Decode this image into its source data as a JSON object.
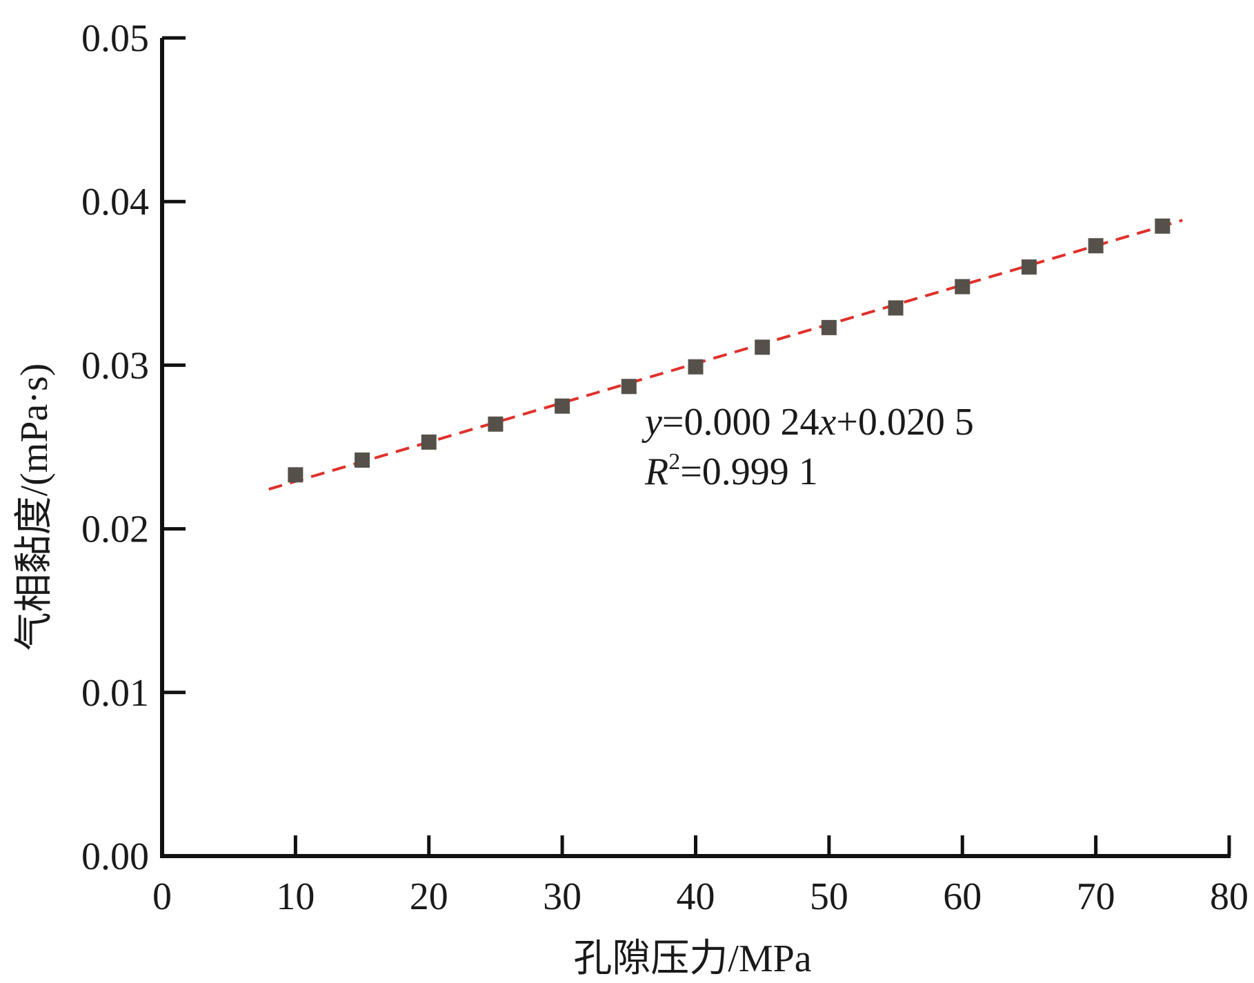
{
  "chart_data": {
    "type": "scatter",
    "title": "",
    "xlabel": "孔隙压力/MPa",
    "ylabel": "气相黏度/(mPa·s)",
    "xlim": [
      0,
      80
    ],
    "ylim": [
      0.0,
      0.05
    ],
    "x_ticks": [
      "0",
      "10",
      "20",
      "30",
      "40",
      "50",
      "60",
      "70",
      "80"
    ],
    "y_ticks": [
      "0.00",
      "0.01",
      "0.02",
      "0.03",
      "0.04",
      "0.05"
    ],
    "grid": false,
    "series": [
      {
        "type": "scatter",
        "marker": "square",
        "color": "#555049",
        "x": [
          10,
          15,
          20,
          25,
          30,
          35,
          40,
          45,
          50,
          55,
          60,
          65,
          70,
          75
        ],
        "y": [
          0.0233,
          0.0242,
          0.0253,
          0.0264,
          0.0275,
          0.0287,
          0.0299,
          0.0311,
          0.0323,
          0.0335,
          0.0348,
          0.036,
          0.0373,
          0.0385
        ]
      },
      {
        "type": "line",
        "style": "dashed",
        "color": "#e0302a",
        "x": [
          8,
          76.5
        ],
        "y": [
          0.02242,
          0.03886
        ]
      }
    ],
    "annotation": {
      "equation_var_y": "y",
      "equation_mid": "=0.000 24",
      "equation_var_x": "x",
      "equation_end": "+0.020 5",
      "r2_var": "R",
      "r2_sup": "2",
      "r2_value": "=0.999 1"
    }
  }
}
